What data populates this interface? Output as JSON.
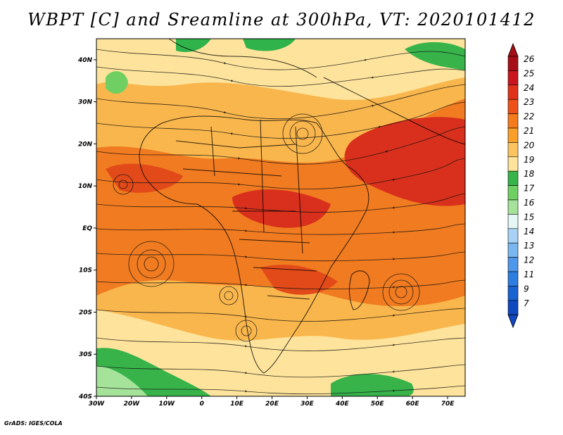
{
  "title": "WBPT [C] and Sreamline at 300hPa, VT: 2020101412",
  "credit": "GrADS: IGES/COLA",
  "map": {
    "lon_range": [
      -30,
      75
    ],
    "lat_range": [
      -40,
      45
    ],
    "x_ticks": [
      "30W",
      "20W",
      "10W",
      "0",
      "10E",
      "20E",
      "30E",
      "40E",
      "50E",
      "60E",
      "70E"
    ],
    "x_tick_values": [
      -30,
      -20,
      -10,
      0,
      10,
      20,
      30,
      40,
      50,
      60,
      70
    ],
    "y_ticks": [
      "40N",
      "30N",
      "20N",
      "10N",
      "EQ",
      "10S",
      "20S",
      "30S",
      "40S"
    ],
    "y_tick_values": [
      40,
      30,
      20,
      10,
      0,
      -10,
      -20,
      -30,
      -40
    ]
  },
  "colorbar": {
    "labels": [
      "26",
      "25",
      "24",
      "23",
      "22",
      "21",
      "20",
      "19",
      "18",
      "17",
      "16",
      "15",
      "14",
      "13",
      "12",
      "11",
      "9",
      "7"
    ],
    "colors": [
      "#a50f15",
      "#c8151e",
      "#e03218",
      "#ee5218",
      "#f57a1c",
      "#faa02a",
      "#fbc460",
      "#fde49a",
      "#37b34a",
      "#6fcf62",
      "#a5e39a",
      "#e4f7f4",
      "#a7d2f5",
      "#7ab7f0",
      "#4e97ea",
      "#2e7de0",
      "#1862d2",
      "#1048c0"
    ]
  }
}
